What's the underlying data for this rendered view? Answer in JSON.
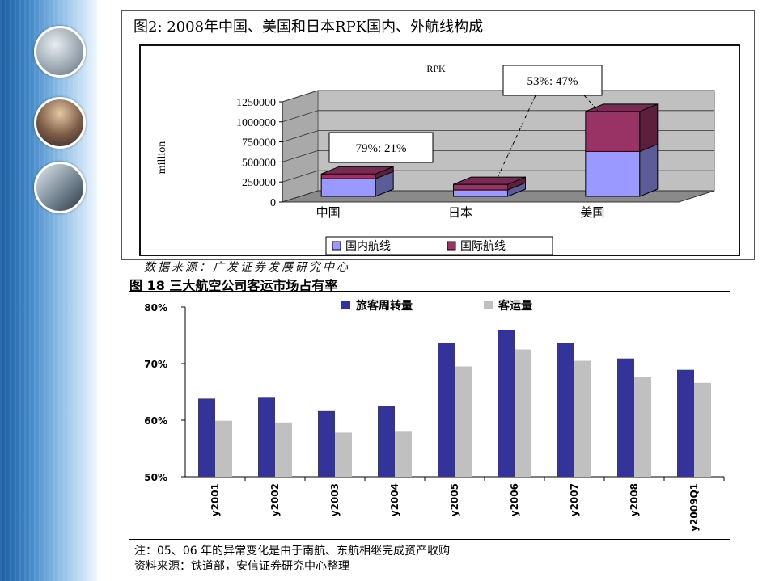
{
  "slide": {
    "source_note": "数据来源：广发证券发展研究中心",
    "footnote": "注：05、06 年的异常变化是由于南航、东航相继完成资产收购",
    "source2": "资料来源：铁道部，安信证券研究中心整理"
  },
  "chart_data": [
    {
      "type": "bar",
      "stacked": true,
      "three_d": true,
      "title": "图2: 2008年中国、美国和日本RPK国内、外航线构成",
      "subtitle": "RPK",
      "ylabel": "million",
      "ylim": [
        0,
        1250000
      ],
      "yticks": [
        0,
        250000,
        500000,
        750000,
        1000000,
        1250000
      ],
      "categories": [
        "中国",
        "日本",
        "美国"
      ],
      "series": [
        {
          "name": "国内航线",
          "color": "#9999ff",
          "values": [
            220000,
            80000,
            560000
          ]
        },
        {
          "name": "国际航线",
          "color": "#993366",
          "values": [
            60000,
            70000,
            500000
          ]
        }
      ],
      "annotations": [
        {
          "text": "79%: 21%",
          "target": "中国"
        },
        {
          "text": "53%: 47%",
          "target": "美国"
        }
      ],
      "legend_position": "bottom"
    },
    {
      "type": "bar",
      "title": "图 18    三大航空公司客运市场占有率",
      "categories": [
        "y2001",
        "y2002",
        "y2003",
        "y2004",
        "y2005",
        "y2006",
        "y2007",
        "y2008",
        "y2009Q1"
      ],
      "ylim": [
        50,
        80
      ],
      "yticks": [
        50,
        60,
        70,
        80
      ],
      "ytick_labels": [
        "50%",
        "60%",
        "70%",
        "80%"
      ],
      "series": [
        {
          "name": "旅客周转量",
          "color": "#333399",
          "values": [
            63.8,
            64.1,
            61.6,
            62.5,
            73.7,
            76.0,
            73.7,
            70.9,
            68.9
          ]
        },
        {
          "name": "客运量",
          "color": "#c0c0c0",
          "values": [
            59.9,
            59.6,
            57.8,
            58.1,
            69.5,
            72.5,
            70.5,
            67.7,
            66.6
          ]
        }
      ],
      "legend_position": "top",
      "grid": false
    }
  ]
}
